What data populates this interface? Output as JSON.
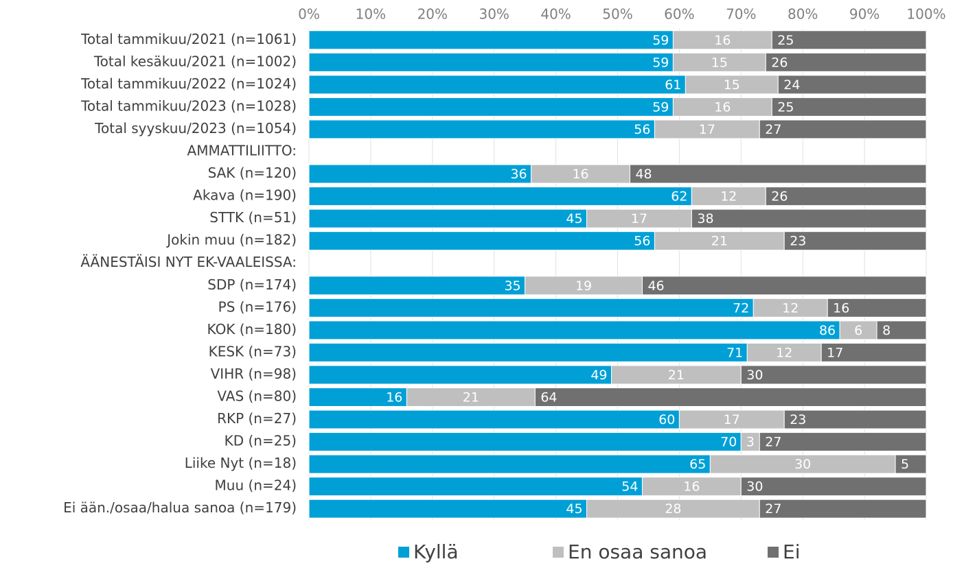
{
  "chart_data": {
    "type": "bar",
    "orientation": "horizontal",
    "stacking": "percent",
    "categories": [
      "Total tammikuu/2021 (n=1061)",
      "Total kesäkuu/2021 (n=1002)",
      "Total tammikuu/2022 (n=1024)",
      "Total tammikuu/2023 (n=1028)",
      "Total syyskuu/2023 (n=1054)",
      "AMMATTILIITTO:",
      "SAK (n=120)",
      "Akava (n=190)",
      "STTK (n=51)",
      "Jokin muu (n=182)",
      "ÄÄNESTÄISI NYT EK-VAALEISSA:",
      "SDP (n=174)",
      "PS (n=176)",
      "KOK (n=180)",
      "KESK (n=73)",
      "VIHR (n=98)",
      "VAS (n=80)",
      "RKP (n=27)",
      "KD (n=25)",
      "Liike Nyt (n=18)",
      "Muu (n=24)",
      "Ei ään./osaa/halua sanoa (n=179)"
    ],
    "series": [
      {
        "name": "Kyllä",
        "color": "#00a0d6",
        "label_position": "end",
        "values": [
          59,
          59,
          61,
          59,
          56,
          null,
          36,
          62,
          45,
          56,
          null,
          35,
          72,
          86,
          71,
          49,
          16,
          60,
          70,
          65,
          54,
          45
        ]
      },
      {
        "name": "En osaa sanoa",
        "color": "#bfbfbf",
        "label_position": "middle",
        "values": [
          16,
          15,
          15,
          16,
          17,
          null,
          16,
          12,
          17,
          21,
          null,
          19,
          12,
          6,
          12,
          21,
          21,
          17,
          3,
          30,
          16,
          28
        ]
      },
      {
        "name": "Ei",
        "color": "#707070",
        "label_position": "start",
        "values": [
          25,
          26,
          24,
          25,
          27,
          null,
          48,
          26,
          38,
          23,
          null,
          46,
          16,
          8,
          17,
          30,
          64,
          23,
          27,
          5,
          30,
          27
        ]
      }
    ],
    "xlim": [
      0,
      100
    ],
    "xticks": [
      {
        "value": 0,
        "label": "0%"
      },
      {
        "value": 10,
        "label": "10%"
      },
      {
        "value": 20,
        "label": "20%"
      },
      {
        "value": 30,
        "label": "30%"
      },
      {
        "value": 40,
        "label": "40%"
      },
      {
        "value": 50,
        "label": "50%"
      },
      {
        "value": 60,
        "label": "60%"
      },
      {
        "value": 70,
        "label": "70%"
      },
      {
        "value": 80,
        "label": "80%"
      },
      {
        "value": 90,
        "label": "90%"
      },
      {
        "value": 100,
        "label": "100%"
      }
    ],
    "grid": true,
    "legend": "bottom"
  }
}
